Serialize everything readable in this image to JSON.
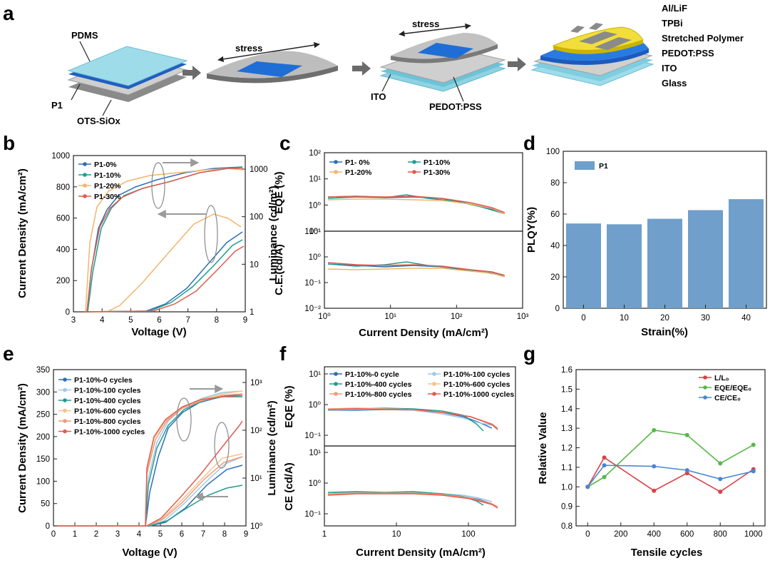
{
  "panels": {
    "a": {
      "letter": "a",
      "pdms": "PDMS",
      "p1": "P1",
      "ots": "OTS-SiOx",
      "stress1": "stress",
      "stress2": "stress",
      "ito": "ITO",
      "pedot": "PEDOT:PSS",
      "stack": [
        "Al/LiF",
        "TPBi",
        "Stretched Polymer",
        "PEDOT:PSS",
        "ITO",
        "Glass"
      ]
    },
    "b": {
      "letter": "b"
    },
    "c": {
      "letter": "c"
    },
    "d": {
      "letter": "d"
    },
    "e": {
      "letter": "e"
    },
    "f": {
      "letter": "f"
    },
    "g": {
      "letter": "g"
    }
  },
  "chart_data": [
    {
      "id": "b",
      "type": "line",
      "xlabel": "Voltage (V)",
      "ylabel": "Current Density (mA/cm²)",
      "y2label": "Luminance (cd/m²)",
      "xlim": [
        3,
        9
      ],
      "xticks": [
        "3",
        "4",
        "5",
        "6",
        "7",
        "8",
        "9"
      ],
      "ylim": [
        0,
        1000
      ],
      "yticks": [
        "0",
        "200",
        "400",
        "600",
        "800",
        "1000"
      ],
      "y2ticks": [
        "1",
        "10",
        "100",
        "1000"
      ],
      "legend": [
        "P1-0%",
        "P1-10%",
        "P1-20%",
        "P1-30%"
      ],
      "note": "current density (lower curves) and luminance (upper curves) versus voltage"
    },
    {
      "id": "c",
      "type": "line",
      "xlabel": "Current Density (mA/cm²)",
      "xticks": [
        "10⁰",
        "10¹",
        "10²",
        "10³"
      ],
      "top": {
        "ylabel": "EQE (%)",
        "yticks": [
          "10²",
          "10¹",
          "10⁰",
          "10⁻¹"
        ]
      },
      "bottom": {
        "ylabel": "C.E.(cd/A)",
        "yticks": [
          "10¹",
          "10⁰",
          "10⁻¹",
          "10⁻²"
        ]
      },
      "legend": [
        "P1- 0%",
        "P1-10%",
        "P1-20%",
        "P1-30%"
      ]
    },
    {
      "id": "d",
      "type": "bar",
      "xlabel": "Strain(%)",
      "ylabel": "PLQY(%)",
      "categories": [
        "0",
        "10",
        "20",
        "30",
        "40"
      ],
      "values": [
        54,
        53.5,
        57,
        62.5,
        69.5
      ],
      "ylim": [
        0,
        100
      ],
      "yticks": [
        "0",
        "20",
        "40",
        "60",
        "80",
        "100"
      ],
      "legend": [
        "P1"
      ],
      "color": "#6f9fca"
    },
    {
      "id": "e",
      "type": "line",
      "xlabel": "Voltage (V)",
      "ylabel": "Current Density (mA/cm²)",
      "y2label": "Luminance (cd/m²)",
      "xlim": [
        0,
        9
      ],
      "xticks": [
        "0",
        "1",
        "2",
        "3",
        "4",
        "5",
        "6",
        "7",
        "8",
        "9"
      ],
      "ylim": [
        0,
        350
      ],
      "yticks": [
        "0",
        "50",
        "100",
        "150",
        "200",
        "250",
        "300",
        "350"
      ],
      "y2ticks": [
        "10⁰",
        "10¹",
        "10²",
        "10³"
      ],
      "legend": [
        "P1-10%-0 cycles",
        "P1-10%-100 cycles",
        "P1-10%-400 cycles",
        "P1-10%-600 cycles",
        "P1-10%-800 cycles",
        "P1-10%-1000 cycles"
      ]
    },
    {
      "id": "f",
      "type": "line",
      "xlabel": "Current Density (mA/cm²)",
      "xticks": [
        "1",
        "10",
        "100"
      ],
      "top": {
        "ylabel": "EQE (%)",
        "yticks": [
          "10¹",
          "10⁰",
          "10⁻¹"
        ]
      },
      "bottom": {
        "ylabel": "CE (cd/A)",
        "yticks": [
          "10¹",
          "10⁰",
          "10⁻¹"
        ]
      },
      "legend": [
        "P1-10%-0 cycle",
        "P1-10%-100 cycles",
        "P1-10%-400 cycles",
        "P1-10%-600 cycles",
        "P1-10%-800 cycles",
        "P1-10%-1000 cycles"
      ]
    },
    {
      "id": "g",
      "type": "line",
      "xlabel": "Tensile cycles",
      "ylabel": "Relative Value",
      "x": [
        0,
        100,
        400,
        600,
        800,
        1000
      ],
      "xlim": [
        -70,
        1070
      ],
      "xticks": [
        "0",
        "200",
        "400",
        "600",
        "800",
        "1000"
      ],
      "ylim": [
        0.8,
        1.6
      ],
      "yticks": [
        "0.8",
        "0.9",
        "1.0",
        "1.1",
        "1.2",
        "1.3",
        "1.4",
        "1.5",
        "1.6"
      ],
      "series": [
        {
          "name": "L/L₀",
          "color": "#d9414a",
          "values": [
            1.0,
            1.15,
            0.98,
            1.07,
            0.975,
            1.09
          ]
        },
        {
          "name": "EQE/EQE₀",
          "color": "#57b846",
          "values": [
            1.0,
            1.05,
            1.29,
            1.265,
            1.12,
            1.215
          ]
        },
        {
          "name": "CE/CE₀",
          "color": "#4a86cf",
          "values": [
            1.0,
            1.11,
            1.105,
            1.085,
            1.04,
            1.08
          ]
        }
      ]
    }
  ]
}
